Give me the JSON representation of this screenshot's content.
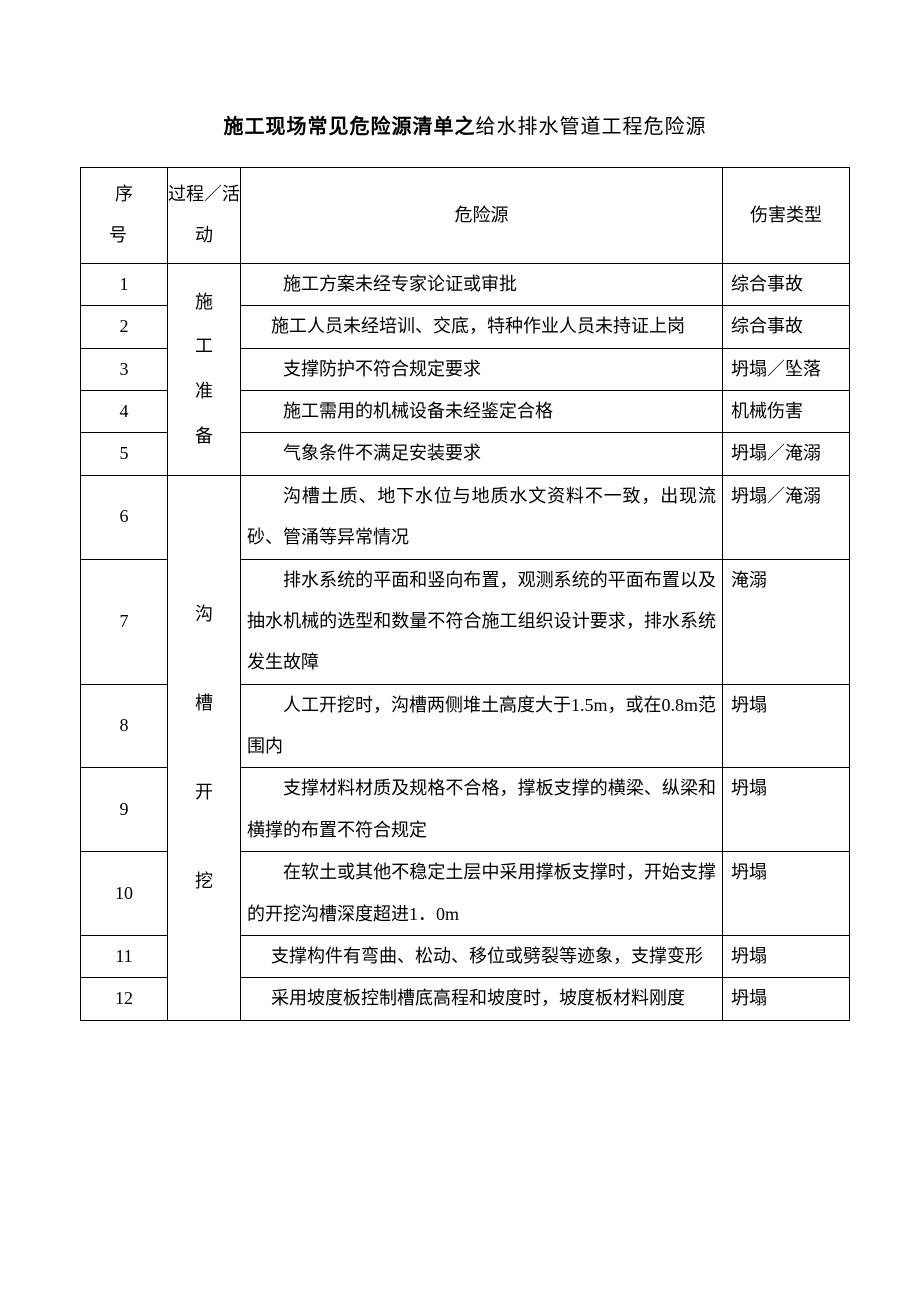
{
  "title_bold": "施工现场常见危险源清单之",
  "title_plain": "给水排水管道工程危险源",
  "headers": {
    "seq": "序 号",
    "activity": "过程／活动",
    "hazard": "危险源",
    "harm": "伤害类型"
  },
  "group1_activity": [
    "施",
    "工",
    "准",
    "备"
  ],
  "group2_activity": [
    "沟",
    "槽",
    "开",
    "挖"
  ],
  "rows": [
    {
      "n": "1",
      "hazard": "施工方案未经专家论证或审批",
      "harm": "综合事故"
    },
    {
      "n": "2",
      "hazard": "施工人员未经培训、交底，特种作业人员未持证上岗",
      "harm": "综合事故"
    },
    {
      "n": "3",
      "hazard": "支撑防护不符合规定要求",
      "harm": "坍塌／坠落"
    },
    {
      "n": "4",
      "hazard": "施工需用的机械设备未经鉴定合格",
      "harm": "机械伤害"
    },
    {
      "n": "5",
      "hazard": "气象条件不满足安装要求",
      "harm": "坍塌／淹溺"
    },
    {
      "n": "6",
      "hazard": "沟槽土质、地下水位与地质水文资料不一致，出现流砂、管涌等异常情况",
      "harm": "坍塌／淹溺"
    },
    {
      "n": "7",
      "hazard": "排水系统的平面和竖向布置，观测系统的平面布置以及抽水机械的选型和数量不符合施工组织设计要求，排水系统发生故障",
      "harm": "淹溺"
    },
    {
      "n": "8",
      "hazard": "人工开挖时，沟槽两侧堆土高度大于1.5m，或在0.8m范围内",
      "harm": "坍塌"
    },
    {
      "n": "9",
      "hazard": "支撑材料材质及规格不合格，撑板支撑的横梁、纵梁和横撑的布置不符合规定",
      "harm": "坍塌"
    },
    {
      "n": "10",
      "hazard": "在软土或其他不稳定土层中采用撑板支撑时，开始支撑的开挖沟槽深度超进1．0m",
      "harm": "坍塌"
    },
    {
      "n": "11",
      "hazard": "支撑构件有弯曲、松动、移位或劈裂等迹象，支撑变形",
      "harm": "坍塌"
    },
    {
      "n": "12",
      "hazard": "采用坡度板控制槽底高程和坡度时，坡度板材料刚度",
      "harm": "坍塌"
    }
  ]
}
